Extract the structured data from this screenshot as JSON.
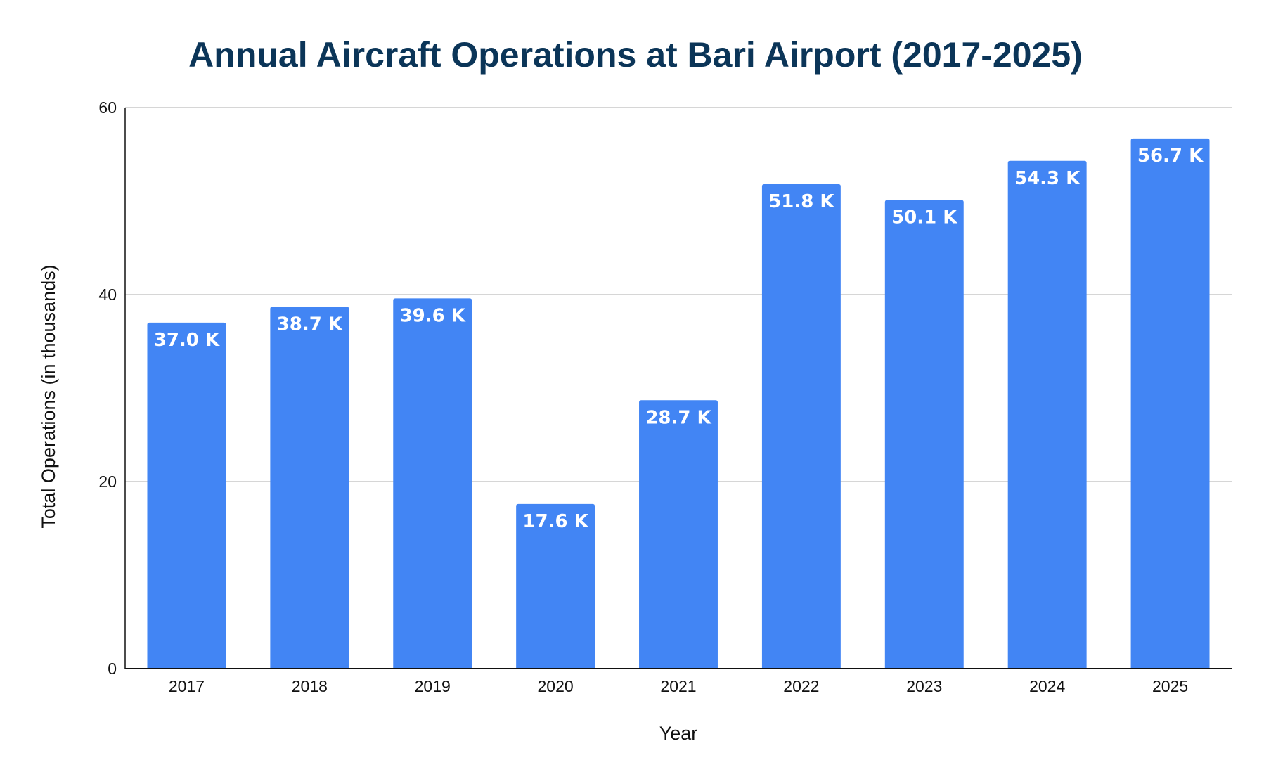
{
  "chart_data": {
    "type": "bar",
    "title": "Annual Aircraft Operations at Bari Airport (2017-2025)",
    "xlabel": "Year",
    "ylabel": "Total Operations (in thousands)",
    "categories": [
      "2017",
      "2018",
      "2019",
      "2020",
      "2021",
      "2022",
      "2023",
      "2024",
      "2025"
    ],
    "values": [
      37.0,
      38.7,
      39.6,
      17.6,
      28.7,
      51.8,
      50.1,
      54.3,
      56.7
    ],
    "data_labels": [
      "37.0 K",
      "38.7 K",
      "39.6 K",
      "17.6 K",
      "28.7 K",
      "51.8 K",
      "50.1 K",
      "54.3 K",
      "56.7 K"
    ],
    "ylim": [
      0,
      60
    ],
    "yticks": [
      "0",
      "20",
      "40",
      "60"
    ],
    "grid": true,
    "legend": "none",
    "colors": {
      "bar": "#4285f4",
      "title": "#0b3558",
      "grid": "#c8c8c8",
      "axis": "#111111",
      "label": "#ffffff"
    }
  }
}
